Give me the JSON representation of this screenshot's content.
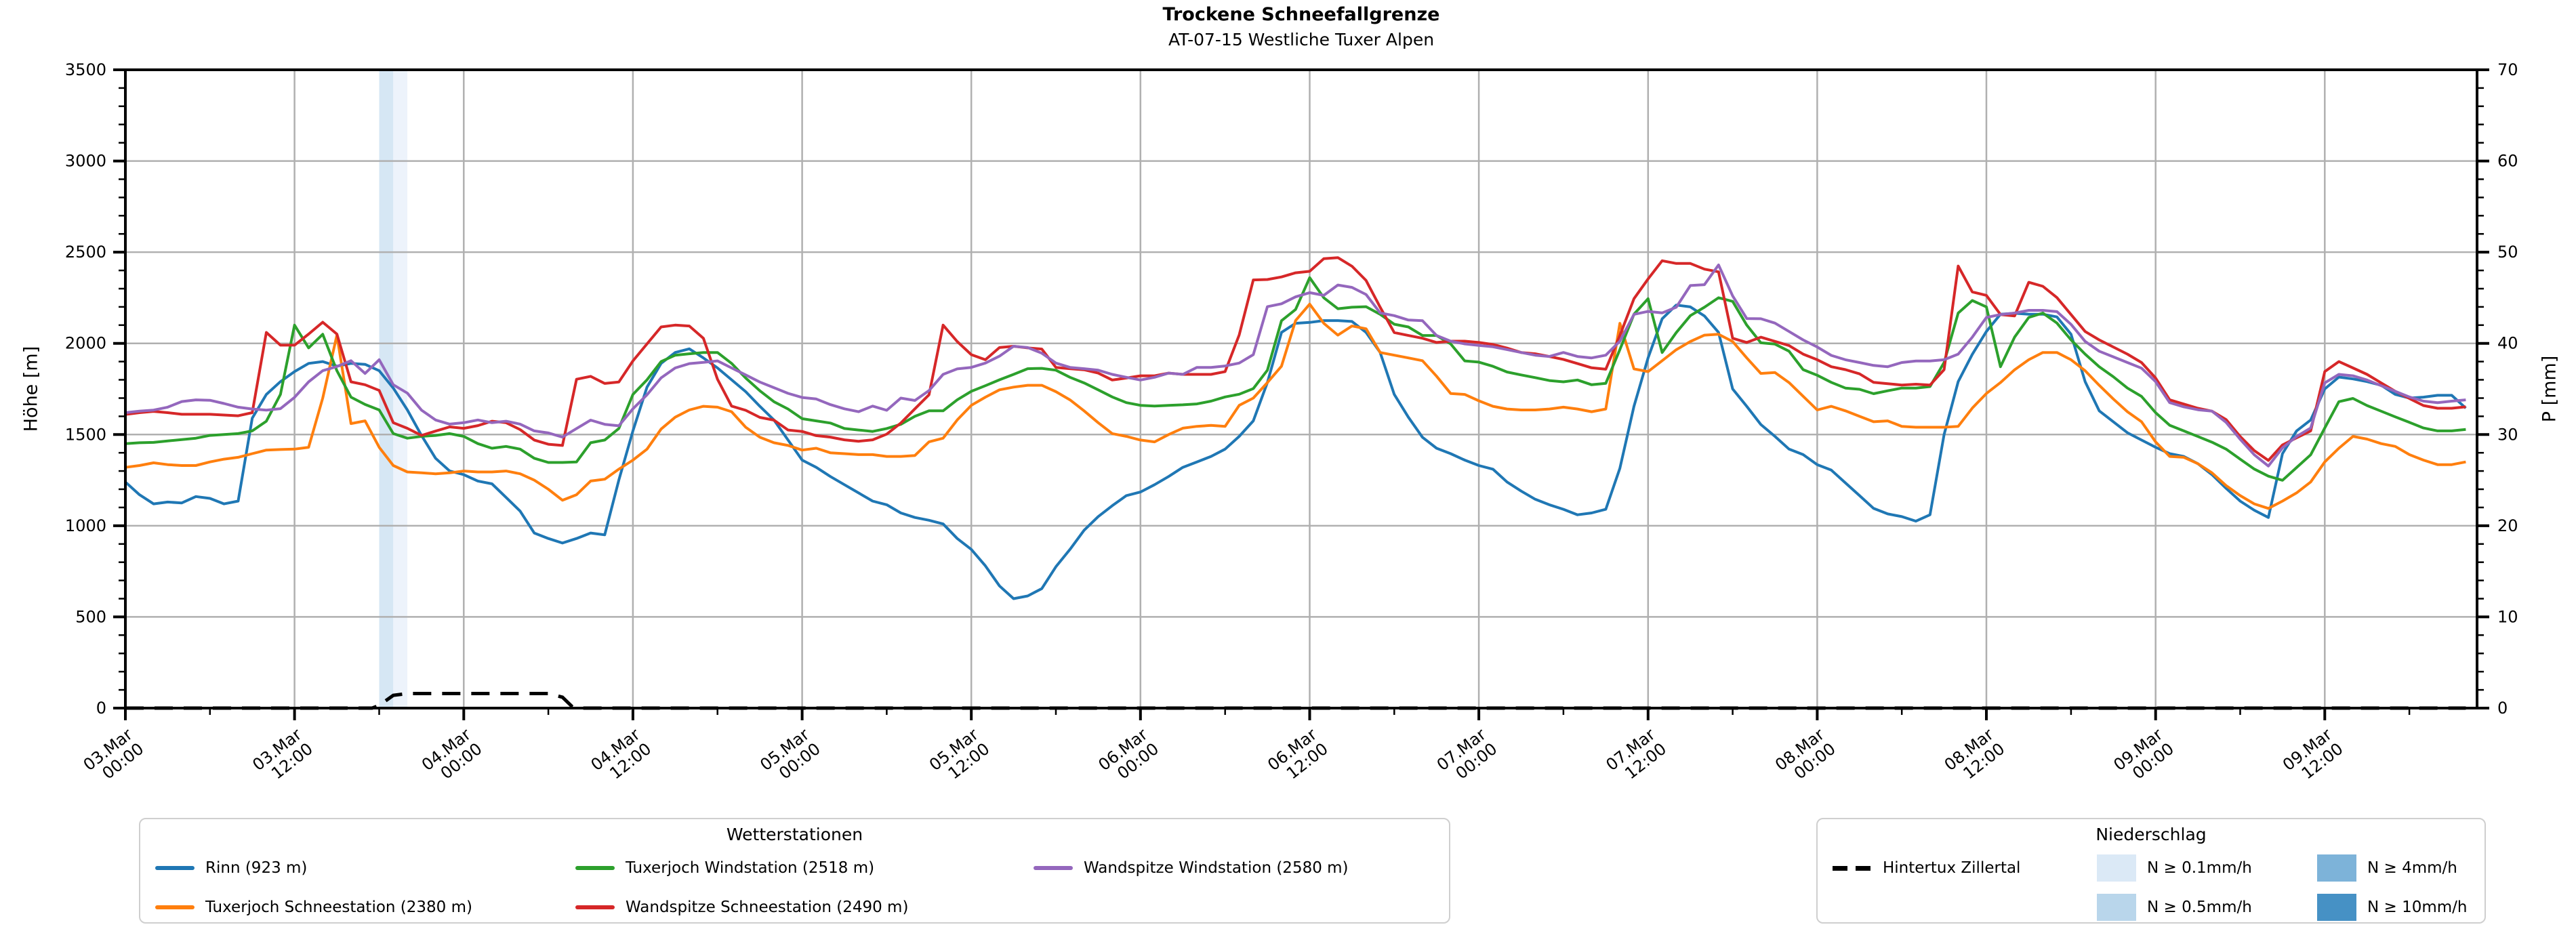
{
  "header": {
    "title": "Trockene Schneefallgrenze",
    "subtitle": "AT-07-15 Westliche Tuxer Alpen"
  },
  "axes": {
    "y_left": {
      "label": "Höhe [m]",
      "min": 0,
      "max": 3500,
      "major_ticks": [
        0,
        500,
        1000,
        1500,
        2000,
        2500,
        3000,
        3500
      ],
      "minor_step": 100
    },
    "y_right": {
      "label": "P [mm]",
      "min": 0,
      "max": 70,
      "major_ticks": [
        0,
        10,
        20,
        30,
        40,
        50,
        60,
        70
      ],
      "minor_step": 2
    },
    "x": {
      "tick_labels": [
        [
          "03.Mar",
          "00:00"
        ],
        [
          "03.Mar",
          "12:00"
        ],
        [
          "04.Mar",
          "00:00"
        ],
        [
          "04.Mar",
          "12:00"
        ],
        [
          "05.Mar",
          "00:00"
        ],
        [
          "05.Mar",
          "12:00"
        ],
        [
          "06.Mar",
          "00:00"
        ],
        [
          "06.Mar",
          "12:00"
        ],
        [
          "07.Mar",
          "00:00"
        ],
        [
          "07.Mar",
          "12:00"
        ],
        [
          "08.Mar",
          "00:00"
        ],
        [
          "08.Mar",
          "12:00"
        ],
        [
          "09.Mar",
          "00:00"
        ],
        [
          "09.Mar",
          "12:00"
        ]
      ]
    }
  },
  "legends": {
    "stations": {
      "title": "Wetterstationen",
      "items": [
        {
          "label": "Rinn (923 m)",
          "type": "line",
          "color": "#1f77b4",
          "col": 0,
          "row": 0
        },
        {
          "label": "Tuxerjoch Schneestation (2380 m)",
          "type": "line",
          "color": "#ff7f0e",
          "col": 0,
          "row": 1
        },
        {
          "label": "Tuxerjoch Windstation (2518 m)",
          "type": "line",
          "color": "#2ca02c",
          "col": 1,
          "row": 0
        },
        {
          "label": "Wandspitze Schneestation (2490 m)",
          "type": "line",
          "color": "#d62728",
          "col": 1,
          "row": 1
        },
        {
          "label": "Wandspitze Windstation (2580 m)",
          "type": "line",
          "color": "#9467bd",
          "col": 2,
          "row": 0
        }
      ]
    },
    "precip": {
      "title": "Niederschlag",
      "items": [
        {
          "label": "Hintertux Zillertal",
          "type": "dashed-line",
          "color": "#000000",
          "col": 0,
          "row": 0
        },
        {
          "label": "N ≥ 0.1mm/h",
          "type": "patch",
          "color": "#dbe9f6",
          "col": 1,
          "row": 0
        },
        {
          "label": "N ≥ 0.5mm/h",
          "type": "patch",
          "color": "#b9d6eb",
          "col": 1,
          "row": 1
        },
        {
          "label": "N ≥ 4mm/h",
          "type": "patch",
          "color": "#7db3d9",
          "col": 2,
          "row": 0
        },
        {
          "label": "N ≥ 10mm/h",
          "type": "patch",
          "color": "#4691c5",
          "col": 2,
          "row": 1
        }
      ]
    }
  },
  "chart_data": {
    "type": "line",
    "title": "Trockene Schneefallgrenze",
    "subtitle": "AT-07-15 Westliche Tuxer Alpen",
    "xlabel": "",
    "ylabel": "Höhe [m]",
    "y2label": "P [mm]",
    "ylim": [
      0,
      3500
    ],
    "y2lim": [
      0,
      70
    ],
    "grid": true,
    "legend_position": "below",
    "x_unit": "hours since 03.Mar 00:00",
    "x_hours_max": 166.8,
    "x_major_tick_hours": [
      0,
      12,
      24,
      36,
      48,
      60,
      72,
      84,
      96,
      108,
      120,
      132,
      144,
      156
    ],
    "x_minor_tick_step_hours": 6,
    "series": [
      {
        "name": "Rinn (923 m)",
        "color": "#1f77b4",
        "values": [
          1240,
          1170,
          1120,
          1130,
          1125,
          1160,
          1150,
          1120,
          1135,
          1590,
          1720,
          1790,
          1845,
          1890,
          1900,
          1875,
          1890,
          1885,
          1850,
          1755,
          1635,
          1495,
          1370,
          1300,
          1280,
          1245,
          1230,
          1155,
          1080,
          960,
          930,
          905,
          930,
          960,
          950,
          1250,
          1520,
          1760,
          1890,
          1950,
          1970,
          1920,
          1865,
          1800,
          1735,
          1655,
          1580,
          1470,
          1360,
          1320,
          1270,
          1225,
          1180,
          1135,
          1115,
          1070,
          1045,
          1030,
          1010,
          930,
          870,
          780,
          670,
          600,
          615,
          655,
          775,
          870,
          975,
          1050,
          1110,
          1165,
          1185,
          1225,
          1270,
          1320,
          1350,
          1380,
          1420,
          1490,
          1575,
          1785,
          2060,
          2110,
          2115,
          2125,
          2125,
          2120,
          2060,
          1950,
          1720,
          1595,
          1485,
          1425,
          1395,
          1360,
          1330,
          1310,
          1240,
          1190,
          1145,
          1115,
          1090,
          1060,
          1070,
          1090,
          1315,
          1655,
          1920,
          2135,
          2210,
          2200,
          2150,
          2060,
          1750,
          1655,
          1555,
          1490,
          1420,
          1390,
          1335,
          1305,
          1235,
          1165,
          1095,
          1065,
          1050,
          1025,
          1060,
          1500,
          1790,
          1940,
          2065,
          2160,
          2165,
          2160,
          2160,
          2145,
          2050,
          1790,
          1630,
          1570,
          1510,
          1470,
          1430,
          1395,
          1380,
          1340,
          1280,
          1205,
          1135,
          1085,
          1045,
          1395,
          1520,
          1580,
          1750,
          1815,
          1805,
          1790,
          1770,
          1720,
          1700,
          1705,
          1715,
          1715,
          1645
        ]
      },
      {
        "name": "Tuxerjoch Schneestation (2380 m)",
        "color": "#ff7f0e",
        "values": [
          1320,
          1330,
          1345,
          1335,
          1330,
          1330,
          1350,
          1365,
          1375,
          1395,
          1415,
          1418,
          1420,
          1430,
          1700,
          2045,
          1560,
          1575,
          1430,
          1330,
          1295,
          1290,
          1285,
          1290,
          1300,
          1295,
          1295,
          1300,
          1285,
          1250,
          1200,
          1140,
          1170,
          1245,
          1255,
          1310,
          1360,
          1420,
          1530,
          1595,
          1635,
          1655,
          1650,
          1625,
          1540,
          1485,
          1455,
          1440,
          1415,
          1425,
          1400,
          1395,
          1390,
          1390,
          1380,
          1380,
          1385,
          1460,
          1480,
          1580,
          1660,
          1705,
          1745,
          1760,
          1770,
          1770,
          1735,
          1690,
          1630,
          1565,
          1505,
          1490,
          1470,
          1460,
          1500,
          1535,
          1545,
          1550,
          1545,
          1660,
          1700,
          1785,
          1875,
          2125,
          2215,
          2110,
          2045,
          2095,
          2080,
          1950,
          1935,
          1920,
          1905,
          1820,
          1725,
          1720,
          1685,
          1655,
          1640,
          1635,
          1635,
          1640,
          1650,
          1640,
          1625,
          1640,
          2110,
          1860,
          1845,
          1905,
          1965,
          2010,
          2045,
          2050,
          2010,
          1920,
          1835,
          1840,
          1785,
          1710,
          1635,
          1655,
          1630,
          1600,
          1570,
          1575,
          1545,
          1540,
          1540,
          1540,
          1545,
          1645,
          1725,
          1785,
          1855,
          1910,
          1950,
          1950,
          1910,
          1850,
          1770,
          1695,
          1625,
          1570,
          1460,
          1380,
          1375,
          1340,
          1290,
          1220,
          1165,
          1120,
          1095,
          1135,
          1180,
          1240,
          1350,
          1425,
          1490,
          1475,
          1450,
          1435,
          1390,
          1360,
          1335,
          1335,
          1350
        ]
      },
      {
        "name": "Tuxerjoch Windstation (2518 m)",
        "color": "#2ca02c",
        "values": [
          1450,
          1455,
          1457,
          1465,
          1472,
          1480,
          1495,
          1500,
          1505,
          1520,
          1573,
          1720,
          2100,
          1975,
          2050,
          1850,
          1705,
          1665,
          1635,
          1505,
          1480,
          1490,
          1495,
          1505,
          1490,
          1450,
          1425,
          1435,
          1420,
          1370,
          1347,
          1347,
          1350,
          1455,
          1470,
          1533,
          1720,
          1800,
          1900,
          1935,
          1943,
          1950,
          1950,
          1890,
          1810,
          1740,
          1680,
          1640,
          1587,
          1575,
          1563,
          1533,
          1525,
          1517,
          1533,
          1556,
          1600,
          1630,
          1630,
          1690,
          1737,
          1768,
          1800,
          1830,
          1861,
          1863,
          1853,
          1814,
          1783,
          1745,
          1706,
          1675,
          1660,
          1656,
          1660,
          1663,
          1668,
          1683,
          1706,
          1721,
          1752,
          1853,
          2124,
          2186,
          2360,
          2250,
          2190,
          2198,
          2201,
          2159,
          2105,
          2090,
          2043,
          2043,
          1997,
          1904,
          1897,
          1874,
          1843,
          1827,
          1812,
          1796,
          1789,
          1799,
          1773,
          1781,
          1966,
          2160,
          2245,
          1950,
          2059,
          2152,
          2198,
          2250,
          2230,
          2100,
          2003,
          1996,
          1957,
          1856,
          1825,
          1786,
          1755,
          1748,
          1724,
          1740,
          1755,
          1755,
          1763,
          1895,
          2166,
          2235,
          2200,
          1872,
          2034,
          2142,
          2166,
          2111,
          2019,
          1941,
          1872,
          1817,
          1755,
          1709,
          1620,
          1551,
          1520,
          1489,
          1458,
          1420,
          1365,
          1311,
          1272,
          1249,
          1319,
          1389,
          1536,
          1680,
          1698,
          1659,
          1628,
          1597,
          1567,
          1536,
          1520,
          1520,
          1528
        ]
      },
      {
        "name": "Wandspitze Schneestation (2490 m)",
        "color": "#d62728",
        "values": [
          1610,
          1620,
          1627,
          1620,
          1611,
          1611,
          1611,
          1607,
          1603,
          1620,
          2060,
          1990,
          1990,
          2051,
          2116,
          2051,
          1789,
          1773,
          1742,
          1565,
          1534,
          1495,
          1519,
          1542,
          1534,
          1549,
          1573,
          1565,
          1527,
          1470,
          1447,
          1440,
          1803,
          1819,
          1780,
          1788,
          1904,
          1997,
          2090,
          2100,
          2095,
          2028,
          1803,
          1656,
          1633,
          1594,
          1579,
          1525,
          1517,
          1494,
          1486,
          1471,
          1463,
          1471,
          1502,
          1563,
          1641,
          1718,
          2100,
          2010,
          1938,
          1910,
          1977,
          1984,
          1975,
          1969,
          1868,
          1861,
          1855,
          1837,
          1799,
          1810,
          1822,
          1822,
          1837,
          1830,
          1830,
          1830,
          1845,
          2046,
          2348,
          2350,
          2364,
          2387,
          2395,
          2464,
          2470,
          2423,
          2345,
          2198,
          2059,
          2043,
          2028,
          2005,
          2012,
          2012,
          2005,
          1994,
          1974,
          1950,
          1943,
          1928,
          1912,
          1889,
          1866,
          1858,
          2043,
          2245,
          2353,
          2453,
          2438,
          2438,
          2407,
          2392,
          2028,
          2005,
          2034,
          2011,
          1988,
          1941,
          1910,
          1872,
          1856,
          1833,
          1786,
          1779,
          1771,
          1776,
          1771,
          1856,
          2424,
          2282,
          2263,
          2158,
          2150,
          2335,
          2313,
          2251,
          2158,
          2065,
          2019,
          1980,
          1941,
          1895,
          1810,
          1690,
          1667,
          1644,
          1628,
          1582,
          1489,
          1412,
          1358,
          1443,
          1482,
          1520,
          1845,
          1900,
          1865,
          1830,
          1783,
          1737,
          1698,
          1659,
          1644,
          1644,
          1652
        ]
      },
      {
        "name": "Wandspitze Windstation (2580 m)",
        "color": "#9467bd",
        "values": [
          1620,
          1628,
          1634,
          1650,
          1681,
          1690,
          1688,
          1670,
          1650,
          1640,
          1634,
          1642,
          1704,
          1789,
          1850,
          1873,
          1905,
          1835,
          1910,
          1773,
          1727,
          1634,
          1580,
          1557,
          1565,
          1580,
          1565,
          1573,
          1557,
          1520,
          1509,
          1486,
          1533,
          1579,
          1556,
          1548,
          1641,
          1718,
          1811,
          1865,
          1889,
          1896,
          1904,
          1865,
          1827,
          1788,
          1757,
          1726,
          1703,
          1695,
          1664,
          1641,
          1625,
          1656,
          1633,
          1700,
          1687,
          1741,
          1830,
          1860,
          1868,
          1892,
          1930,
          1984,
          1977,
          1946,
          1892,
          1868,
          1861,
          1853,
          1830,
          1814,
          1799,
          1814,
          1837,
          1830,
          1868,
          1868,
          1876,
          1892,
          1938,
          2201,
          2217,
          2255,
          2278,
          2263,
          2320,
          2307,
          2268,
          2167,
          2152,
          2128,
          2124,
          2043,
          2012,
          1997,
          1989,
          1981,
          1966,
          1950,
          1935,
          1928,
          1950,
          1928,
          1920,
          1935,
          2012,
          2159,
          2175,
          2167,
          2198,
          2317,
          2322,
          2430,
          2260,
          2136,
          2135,
          2111,
          2065,
          2019,
          1980,
          1934,
          1910,
          1895,
          1879,
          1872,
          1895,
          1903,
          1903,
          1910,
          1941,
          2034,
          2142,
          2158,
          2166,
          2181,
          2181,
          2174,
          2104,
          2011,
          1957,
          1926,
          1895,
          1864,
          1790,
          1675,
          1652,
          1636,
          1628,
          1567,
          1474,
          1389,
          1327,
          1427,
          1489,
          1536,
          1783,
          1830,
          1822,
          1799,
          1768,
          1737,
          1706,
          1683,
          1675,
          1683,
          1690
        ]
      }
    ],
    "precip_line": {
      "name": "Hintertux Zillertal",
      "color": "#000000",
      "axis": "right",
      "style": "dashed",
      "points": [
        [
          0,
          0
        ],
        [
          17.5,
          0
        ],
        [
          18,
          0.3
        ],
        [
          19,
          1.4
        ],
        [
          20,
          1.6
        ],
        [
          30,
          1.6
        ],
        [
          31,
          1.2
        ],
        [
          31.7,
          0.15
        ],
        [
          32,
          0
        ],
        [
          166,
          0
        ]
      ]
    },
    "precip_bands": [
      {
        "from_hour": 18,
        "to_hour": 19,
        "level": "N ≥ 0.5mm/h",
        "color": "#d6e7f4"
      },
      {
        "from_hour": 19,
        "to_hour": 20,
        "level": "N ≥ 0.1mm/h",
        "color": "#edf3fb"
      }
    ]
  }
}
